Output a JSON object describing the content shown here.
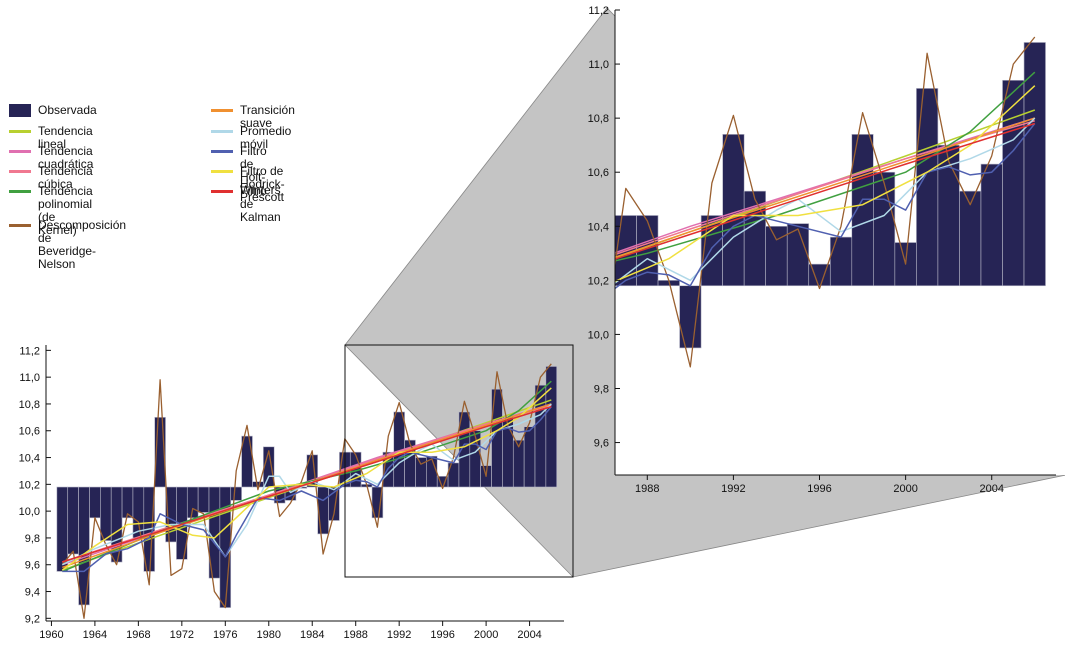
{
  "colors": {
    "bar": "#262455",
    "bar_edge": "#b8b8c8",
    "zoom_fill": "#c4c4c4",
    "axis": "#111111"
  },
  "legend": [
    {
      "label": "Observada",
      "color": "#262455",
      "kind": "box"
    },
    {
      "label": "Tendencia lineal",
      "color": "#b8d030",
      "kind": "line"
    },
    {
      "label": "Tendencia cuadrática",
      "color": "#e070b0",
      "kind": "line"
    },
    {
      "label": "Tendencia cúbica",
      "color": "#f07890",
      "kind": "line"
    },
    {
      "label": "Tendencia polinomial\n(de Kernel)",
      "color": "#40a040",
      "kind": "line"
    },
    {
      "label": "Descomposición de\nBeveridge-Nelson",
      "color": "#9a6030",
      "kind": "line"
    },
    {
      "label": "Transición suave",
      "color": "#f09030",
      "kind": "line"
    },
    {
      "label": "Promedio móvil",
      "color": "#b0d8e8",
      "kind": "line"
    },
    {
      "label": "Filtro de Holt-Winters",
      "color": "#5060b0",
      "kind": "line"
    },
    {
      "label": "Filtro de Hodrick-Prescott",
      "color": "#f0e040",
      "kind": "line"
    },
    {
      "label": "Filtro de Kalman",
      "color": "#e03030",
      "kind": "line"
    }
  ],
  "chart_data": [
    {
      "type": "bar",
      "baseline": 10.18,
      "x": [
        1961,
        1962,
        1963,
        1964,
        1965,
        1966,
        1967,
        1968,
        1969,
        1970,
        1971,
        1972,
        1973,
        1974,
        1975,
        1976,
        1977,
        1978,
        1979,
        1980,
        1981,
        1982,
        1983,
        1984,
        1985,
        1986,
        1987,
        1988,
        1989,
        1990,
        1991,
        1992,
        1993,
        1994,
        1995,
        1996,
        1997,
        1998,
        1999,
        2000,
        2001,
        2002,
        2003,
        2004,
        2005,
        2006
      ],
      "values": [
        9.55,
        9.68,
        9.3,
        9.95,
        9.78,
        9.62,
        9.95,
        9.8,
        9.55,
        10.7,
        9.77,
        9.64,
        9.95,
        9.99,
        9.5,
        9.28,
        10.08,
        10.56,
        10.22,
        10.48,
        10.06,
        10.08,
        10.17,
        10.42,
        9.83,
        9.93,
        10.44,
        10.44,
        10.2,
        9.95,
        10.44,
        10.74,
        10.53,
        10.4,
        10.41,
        10.26,
        10.36,
        10.74,
        10.6,
        10.34,
        10.91,
        10.7,
        10.53,
        10.63,
        10.94,
        11.08
      ],
      "series": [
        {
          "name": "Tendencia lineal",
          "color": "#b8d030",
          "x": [
            1961,
            1970,
            1980,
            1990,
            2000,
            2006
          ],
          "values": [
            9.56,
            9.82,
            10.1,
            10.38,
            10.66,
            10.83
          ]
        },
        {
          "name": "Tendencia cuadrática",
          "color": "#e070b0",
          "x": [
            1961,
            1970,
            1980,
            1990,
            2000,
            2006
          ],
          "values": [
            9.6,
            9.85,
            10.12,
            10.4,
            10.65,
            10.8
          ]
        },
        {
          "name": "Tendencia cúbica",
          "color": "#f07890",
          "x": [
            1961,
            1970,
            1980,
            1990,
            2000,
            2006
          ],
          "values": [
            9.62,
            9.86,
            10.12,
            10.39,
            10.65,
            10.79
          ]
        },
        {
          "name": "Tendencia polinomial (de Kernel)",
          "color": "#40a040",
          "x": [
            1961,
            1970,
            1980,
            1988,
            1994,
            2000,
            2003,
            2006
          ],
          "values": [
            9.55,
            9.85,
            10.15,
            10.3,
            10.44,
            10.6,
            10.75,
            10.97
          ]
        },
        {
          "name": "Descomposición de Beveridge-Nelson",
          "color": "#9a6030",
          "x": [
            1961,
            1962,
            1963,
            1964,
            1965,
            1966,
            1967,
            1968,
            1969,
            1970,
            1971,
            1972,
            1973,
            1974,
            1975,
            1976,
            1977,
            1978,
            1979,
            1980,
            1981,
            1982,
            1983,
            1984,
            1985,
            1986,
            1987,
            1988,
            1989,
            1990,
            1991,
            1992,
            1993,
            1994,
            1995,
            1996,
            1997,
            1998,
            1999,
            2000,
            2001,
            2002,
            2003,
            2004,
            2005,
            2006
          ],
          "values": [
            9.6,
            9.7,
            9.2,
            9.95,
            9.75,
            9.6,
            9.98,
            9.92,
            9.45,
            10.98,
            9.52,
            9.57,
            10.02,
            9.98,
            9.4,
            9.28,
            10.3,
            10.64,
            10.16,
            10.45,
            9.96,
            10.06,
            10.22,
            10.45,
            9.68,
            9.98,
            10.54,
            10.42,
            10.2,
            9.88,
            10.56,
            10.81,
            10.5,
            10.35,
            10.39,
            10.17,
            10.4,
            10.82,
            10.56,
            10.26,
            11.04,
            10.64,
            10.48,
            10.66,
            11.0,
            11.1
          ]
        },
        {
          "name": "Transición suave",
          "color": "#f09030",
          "x": [
            1961,
            1970,
            1980,
            1990,
            2000,
            2006
          ],
          "values": [
            9.58,
            9.84,
            10.11,
            10.38,
            10.64,
            10.8
          ]
        },
        {
          "name": "Promedio móvil",
          "color": "#b0d8e8",
          "x": [
            1961,
            1964,
            1968,
            1971,
            1974,
            1976,
            1978,
            1980,
            1981,
            1982,
            1984,
            1986,
            1988,
            1990,
            1992,
            1994,
            1995,
            1997,
            1999,
            2001,
            2003,
            2005,
            2006
          ],
          "values": [
            9.6,
            9.72,
            9.85,
            9.9,
            9.9,
            9.66,
            9.9,
            10.26,
            10.26,
            10.14,
            10.22,
            10.16,
            10.28,
            10.2,
            10.36,
            10.46,
            10.5,
            10.38,
            10.44,
            10.6,
            10.65,
            10.72,
            10.8
          ]
        },
        {
          "name": "Filtro de Holt-Winters",
          "color": "#5060b0",
          "x": [
            1961,
            1963,
            1965,
            1967,
            1969,
            1970,
            1972,
            1974,
            1976,
            1977,
            1979,
            1981,
            1983,
            1985,
            1987,
            1988,
            1989,
            1990,
            1991,
            1992,
            1993,
            1995,
            1997,
            1998,
            1999,
            2000,
            2001,
            2002,
            2003,
            2004,
            2005,
            2006
          ],
          "values": [
            9.55,
            9.55,
            9.68,
            9.72,
            9.8,
            9.98,
            9.9,
            9.86,
            9.66,
            9.82,
            10.1,
            10.08,
            10.15,
            10.08,
            10.2,
            10.23,
            10.22,
            10.18,
            10.32,
            10.4,
            10.44,
            10.4,
            10.36,
            10.5,
            10.5,
            10.46,
            10.6,
            10.62,
            10.59,
            10.6,
            10.68,
            10.78
          ]
        },
        {
          "name": "Filtro de Hodrick-Prescott",
          "color": "#f0e040",
          "x": [
            1961,
            1964,
            1967,
            1970,
            1973,
            1975,
            1977,
            1980,
            1983,
            1986,
            1989,
            1992,
            1995,
            1998,
            2001,
            2003,
            2006
          ],
          "values": [
            9.56,
            9.74,
            9.9,
            9.92,
            9.82,
            9.8,
            9.95,
            10.18,
            10.2,
            10.18,
            10.28,
            10.44,
            10.44,
            10.48,
            10.6,
            10.7,
            10.92
          ]
        },
        {
          "name": "Filtro de Kalman",
          "color": "#e03030",
          "x": [
            1961,
            1970,
            1980,
            1990,
            2000,
            2006
          ],
          "values": [
            9.62,
            9.85,
            10.11,
            10.37,
            10.63,
            10.78
          ]
        }
      ],
      "xlim": [
        1959.5,
        2006.8
      ],
      "ylim": [
        9.18,
        11.24
      ],
      "xticks": [
        "1960",
        "1964",
        "1968",
        "1972",
        "1976",
        "1980",
        "1984",
        "1988",
        "1992",
        "1996",
        "2000",
        "2004"
      ],
      "yticks": [
        "9,2",
        "9,4",
        "9,6",
        "9,8",
        "10,0",
        "10,2",
        "10,4",
        "10,6",
        "10,8",
        "11,0",
        "11,2"
      ]
    },
    {
      "type": "bar",
      "note_range": [
        1986.5,
        2006.5
      ],
      "xlim": [
        1986.5,
        2006.8
      ],
      "ylim": [
        9.48,
        11.2
      ],
      "xticks": [
        "1988",
        "1992",
        "1996",
        "2000",
        "2004"
      ],
      "yticks": [
        "9,6",
        "9,8",
        "10,0",
        "10,2",
        "10,4",
        "10,6",
        "10,8",
        "11,0",
        "11,2"
      ]
    }
  ]
}
